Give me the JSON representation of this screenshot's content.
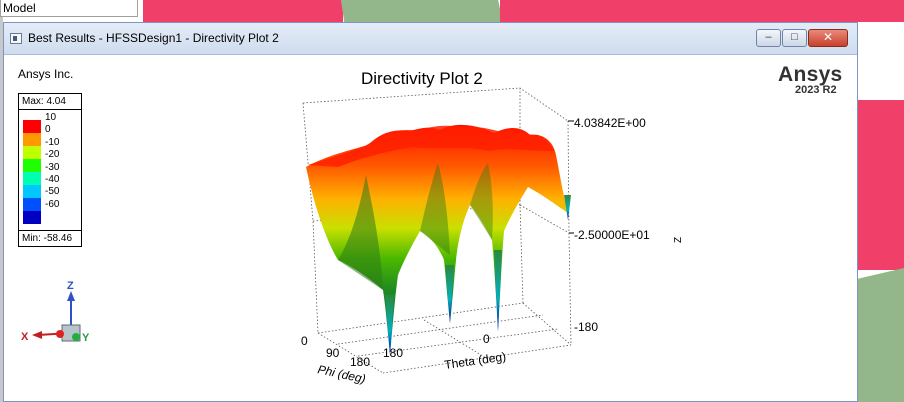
{
  "background": {
    "model_tab_label": "Model"
  },
  "window": {
    "title": "Best Results - HFSSDesign1 - Directivity Plot 2",
    "controls": {
      "minimize": "–",
      "maximize": "□",
      "close": "✕"
    }
  },
  "plot": {
    "company": "Ansys Inc.",
    "title": "Directivity Plot 2",
    "brand": "Ansys",
    "brand_version": "2023 R2",
    "legend": {
      "max_label": "Max: 4.04",
      "min_label": "Min: -58.46",
      "levels": [
        "10",
        "0",
        "-10",
        "-20",
        "-30",
        "-40",
        "-50",
        "-60"
      ],
      "colors": [
        "#ff0000",
        "#ff9900",
        "#bfff00",
        "#20ff00",
        "#00ffb0",
        "#00c8ff",
        "#0050ff",
        "#0000c0"
      ]
    },
    "axes": {
      "z_top": "4.03842E+00",
      "z_mid": "-2.50000E+01",
      "z_label": "Z",
      "theta_label": "Theta (deg)",
      "phi_label": "Phi (deg)",
      "theta_ticks": [
        "180",
        "0",
        "-180"
      ],
      "phi_ticks": [
        "0",
        "90",
        "180"
      ]
    },
    "triad": {
      "x": "X",
      "y": "Y",
      "z": "Z"
    }
  }
}
